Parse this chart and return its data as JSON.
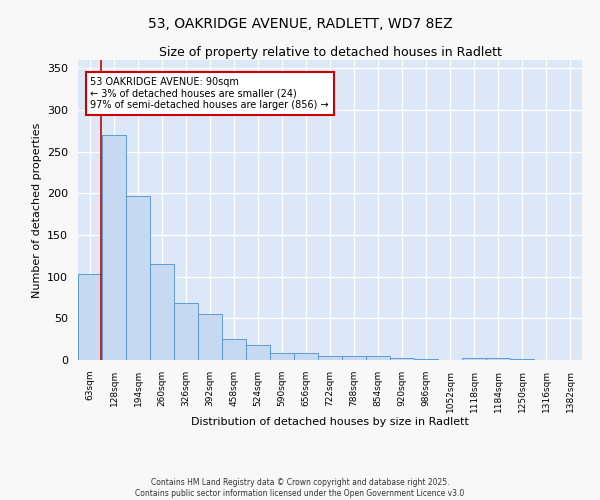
{
  "title1": "53, OAKRIDGE AVENUE, RADLETT, WD7 8EZ",
  "title2": "Size of property relative to detached houses in Radlett",
  "xlabel": "Distribution of detached houses by size in Radlett",
  "ylabel": "Number of detached properties",
  "categories": [
    "63sqm",
    "128sqm",
    "194sqm",
    "260sqm",
    "326sqm",
    "392sqm",
    "458sqm",
    "524sqm",
    "590sqm",
    "656sqm",
    "722sqm",
    "788sqm",
    "854sqm",
    "920sqm",
    "986sqm",
    "1052sqm",
    "1118sqm",
    "1184sqm",
    "1250sqm",
    "1316sqm",
    "1382sqm"
  ],
  "values": [
    103,
    270,
    197,
    115,
    68,
    55,
    25,
    18,
    9,
    8,
    5,
    5,
    5,
    2,
    1,
    0,
    3,
    2,
    1,
    0,
    0
  ],
  "bar_color": "#c6d9f1",
  "bar_edge_color": "#5b9bd5",
  "ylim": [
    0,
    360
  ],
  "yticks": [
    0,
    50,
    100,
    150,
    200,
    250,
    300,
    350
  ],
  "annotation_text": "53 OAKRIDGE AVENUE: 90sqm\n← 3% of detached houses are smaller (24)\n97% of semi-detached houses are larger (856) →",
  "annotation_box_color": "#ffffff",
  "annotation_box_edge": "#cc0000",
  "red_line_x": 0.45,
  "background_color": "#dce8f8",
  "fig_background": "#f8f8f8",
  "footer": "Contains HM Land Registry data © Crown copyright and database right 2025.\nContains public sector information licensed under the Open Government Licence v3.0"
}
